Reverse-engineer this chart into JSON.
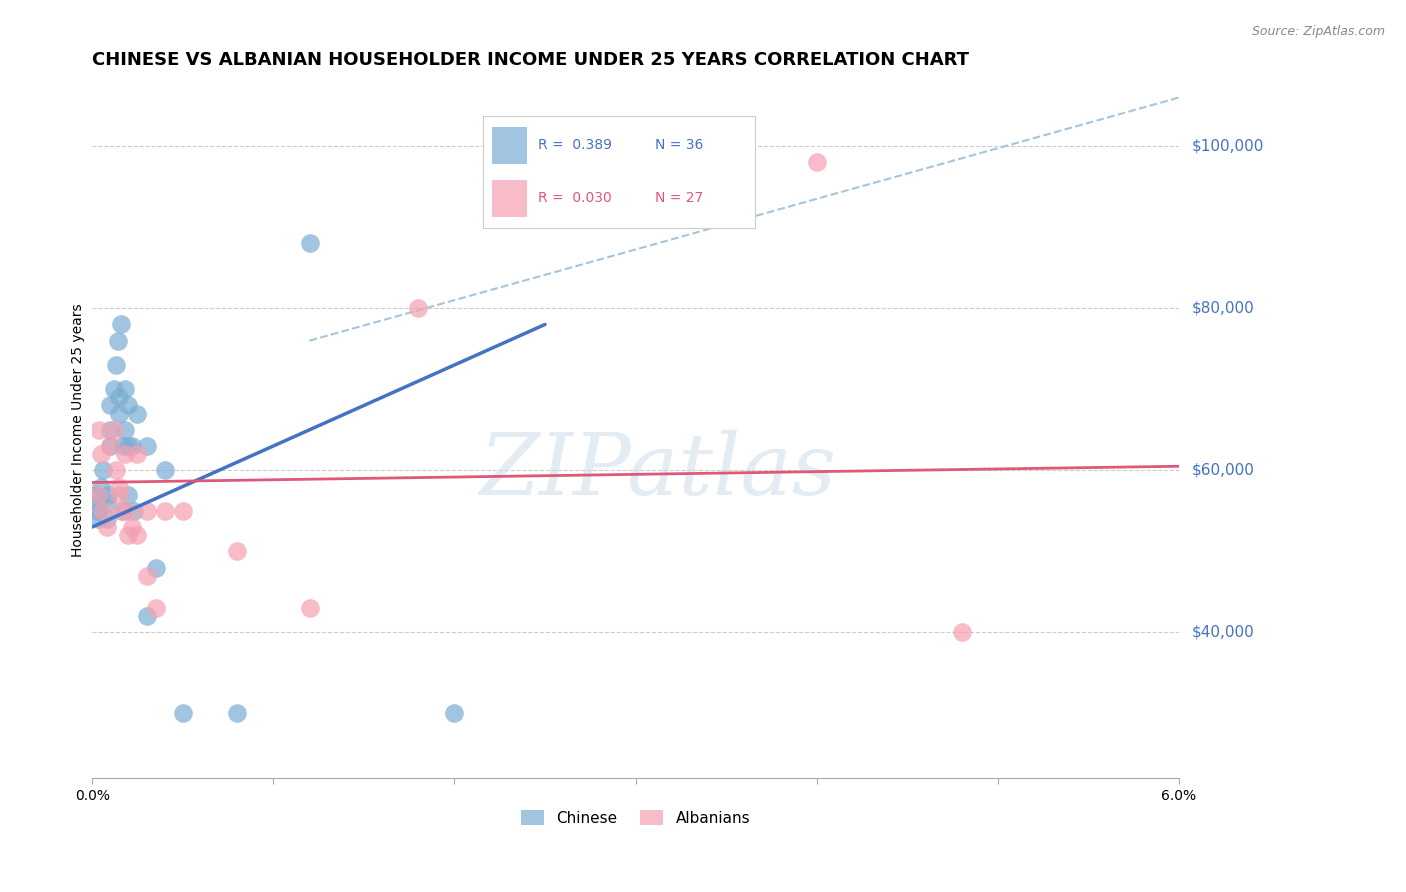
{
  "title": "CHINESE VS ALBANIAN HOUSEHOLDER INCOME UNDER 25 YEARS CORRELATION CHART",
  "source": "Source: ZipAtlas.com",
  "ylabel": "Householder Income Under 25 years",
  "ytick_labels": [
    "$40,000",
    "$60,000",
    "$80,000",
    "$100,000"
  ],
  "ytick_values": [
    40000,
    60000,
    80000,
    100000
  ],
  "xmin": 0.0,
  "xmax": 0.06,
  "ymin": 22000,
  "ymax": 108000,
  "watermark": "ZIPatlas",
  "chinese_color": "#7aadd4",
  "albanian_color": "#f4a0b0",
  "chinese_line_color": "#4472c4",
  "albanian_line_color": "#e05878",
  "dashed_color": "#a8c4dc",
  "chinese_R": 0.389,
  "chinese_N": 36,
  "albanian_R": 0.03,
  "albanian_N": 27,
  "chinese_x": [
    0.0002,
    0.0003,
    0.0003,
    0.0004,
    0.0005,
    0.0006,
    0.0008,
    0.0008,
    0.0009,
    0.001,
    0.001,
    0.001,
    0.0012,
    0.0013,
    0.0014,
    0.0015,
    0.0015,
    0.0016,
    0.0017,
    0.0017,
    0.0018,
    0.0018,
    0.002,
    0.002,
    0.002,
    0.0022,
    0.0023,
    0.0025,
    0.003,
    0.003,
    0.0035,
    0.004,
    0.005,
    0.008,
    0.012,
    0.02
  ],
  "chinese_y": [
    57000,
    55000,
    54000,
    56000,
    58000,
    60000,
    56000,
    54000,
    57000,
    63000,
    65000,
    68000,
    70000,
    73000,
    76000,
    67000,
    69000,
    78000,
    55000,
    63000,
    65000,
    70000,
    68000,
    63000,
    57000,
    63000,
    55000,
    67000,
    42000,
    63000,
    48000,
    60000,
    30000,
    30000,
    88000,
    30000
  ],
  "albanian_x": [
    0.0003,
    0.0004,
    0.0005,
    0.0006,
    0.0008,
    0.001,
    0.0012,
    0.0013,
    0.0015,
    0.0015,
    0.0016,
    0.0018,
    0.002,
    0.002,
    0.0022,
    0.0025,
    0.0025,
    0.003,
    0.003,
    0.0035,
    0.004,
    0.005,
    0.008,
    0.012,
    0.018,
    0.04,
    0.048
  ],
  "albanian_y": [
    57000,
    65000,
    62000,
    55000,
    53000,
    63000,
    65000,
    60000,
    58000,
    57000,
    55000,
    62000,
    52000,
    55000,
    53000,
    62000,
    52000,
    47000,
    55000,
    43000,
    55000,
    55000,
    50000,
    43000,
    80000,
    98000,
    40000
  ],
  "chinese_line_x": [
    0.0,
    0.025
  ],
  "chinese_line_y": [
    53000,
    78000
  ],
  "albanian_line_x": [
    0.0,
    0.06
  ],
  "albanian_line_y": [
    58500,
    60500
  ],
  "dashed_line_x": [
    0.012,
    0.06
  ],
  "dashed_line_y": [
    76000,
    106000
  ],
  "background_color": "#ffffff",
  "grid_color": "#cccccc",
  "title_fontsize": 13,
  "label_fontsize": 10,
  "tick_fontsize": 10,
  "scatter_size": 180
}
